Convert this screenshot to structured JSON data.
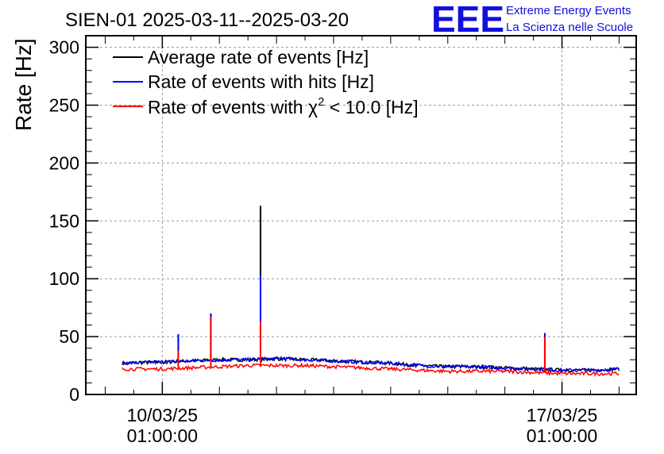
{
  "chart_data": {
    "type": "line",
    "title": "SIEN-01 2025-03-11--2025-03-20",
    "ylabel": "Rate [Hz]",
    "xlabel": "",
    "ylim": [
      0,
      310
    ],
    "xlim_days": [
      -1.34,
      8.3
    ],
    "yticks": [
      0,
      50,
      100,
      150,
      200,
      250,
      300
    ],
    "xticks": [
      {
        "day": 0,
        "date": "10/03/25",
        "time": "01:00:00"
      },
      {
        "day": 7,
        "date": "17/03/25",
        "time": "01:00:00"
      }
    ],
    "grid": true,
    "legend_position": "top-left",
    "legend": [
      {
        "label_main": "Average rate of events [Hz]",
        "color": "#000000"
      },
      {
        "label_main": "Rate of events with hits [Hz]",
        "color": "#0000ff"
      },
      {
        "label_main": "Rate of events with χ",
        "label_sup": "2",
        "label_tail": " < 10.0 [Hz]",
        "color": "#ff0000"
      }
    ],
    "series": [
      {
        "name": "Average rate of events [Hz]",
        "color": "#000000",
        "x": [
          -0.7,
          0.0,
          0.5,
          1.0,
          1.5,
          2.0,
          2.5,
          3.0,
          3.5,
          4.0,
          4.5,
          5.0,
          5.5,
          6.0,
          6.5,
          7.0,
          7.5,
          8.0
        ],
        "y": [
          27,
          28,
          29,
          30,
          30,
          31,
          30,
          29,
          28,
          27,
          25,
          24,
          24,
          23,
          22,
          21,
          21,
          22
        ],
        "spikes": [
          {
            "x": 1.72,
            "y": 163
          },
          {
            "x": 0.28,
            "y": 52
          },
          {
            "x": 0.85,
            "y": 70
          },
          {
            "x": 6.7,
            "y": 53
          }
        ]
      },
      {
        "name": "Rate of events with hits [Hz]",
        "color": "#0000ff",
        "x": [
          -0.7,
          0.0,
          0.5,
          1.0,
          1.5,
          2.0,
          2.5,
          3.0,
          3.5,
          4.0,
          4.5,
          5.0,
          5.5,
          6.0,
          6.5,
          7.0,
          7.5,
          8.0
        ],
        "y": [
          27,
          28,
          29,
          30,
          30,
          31,
          30,
          29,
          28,
          27,
          25,
          24,
          24,
          23,
          22,
          21,
          21,
          22
        ],
        "spikes": [
          {
            "x": 0.28,
            "y": 52
          },
          {
            "x": 0.85,
            "y": 70
          },
          {
            "x": 1.72,
            "y": 103
          },
          {
            "x": 6.7,
            "y": 53
          }
        ]
      },
      {
        "name": "Rate of events with χ2 < 10.0 [Hz]",
        "color": "#ff0000",
        "x": [
          -0.7,
          0.0,
          0.5,
          1.0,
          1.5,
          2.0,
          2.5,
          3.0,
          3.5,
          4.0,
          4.5,
          5.0,
          5.5,
          6.0,
          6.5,
          7.0,
          7.5,
          8.0
        ],
        "y": [
          22,
          22,
          23,
          24,
          25,
          25,
          25,
          24,
          23,
          22,
          21,
          20,
          20,
          20,
          19,
          18,
          18,
          18
        ],
        "spikes": [
          {
            "x": 0.28,
            "y": 38
          },
          {
            "x": 0.85,
            "y": 67
          },
          {
            "x": 1.72,
            "y": 63
          },
          {
            "x": 6.7,
            "y": 50
          }
        ]
      }
    ]
  },
  "logo": {
    "mark": "EEE",
    "line1": "Extreme Energy Events",
    "line2": "La Scienza nelle Scuole"
  }
}
